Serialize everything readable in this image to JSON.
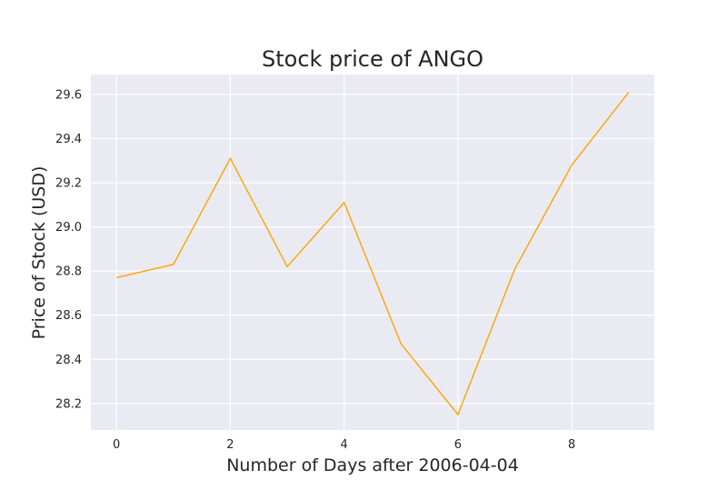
{
  "chart_data": {
    "type": "line",
    "title": "Stock price of ANGO",
    "xlabel": "Number of Days after 2006-04-04",
    "ylabel": "Price of Stock (USD)",
    "x": [
      0,
      1,
      2,
      3,
      4,
      5,
      6,
      7,
      8,
      9
    ],
    "series": [
      {
        "values": [
          28.77,
          28.83,
          29.31,
          28.82,
          29.11,
          28.47,
          28.15,
          28.81,
          29.28,
          29.61
        ],
        "color": "#FFA500"
      }
    ],
    "xlim": [
      -0.45,
      9.45
    ],
    "ylim": [
      28.08,
      29.69
    ],
    "xticks": [
      0,
      2,
      4,
      6,
      8
    ],
    "xtick_labels": [
      "0",
      "2",
      "4",
      "6",
      "8"
    ],
    "yticks": [
      28.2,
      28.4,
      28.6,
      28.8,
      29.0,
      29.2,
      29.4,
      29.6
    ],
    "ytick_labels": [
      "28.2",
      "28.4",
      "28.6",
      "28.8",
      "29.0",
      "29.2",
      "29.4",
      "29.6"
    ],
    "grid": true,
    "background_color": "#EAEAF2",
    "grid_color": "#FFFFFF"
  }
}
